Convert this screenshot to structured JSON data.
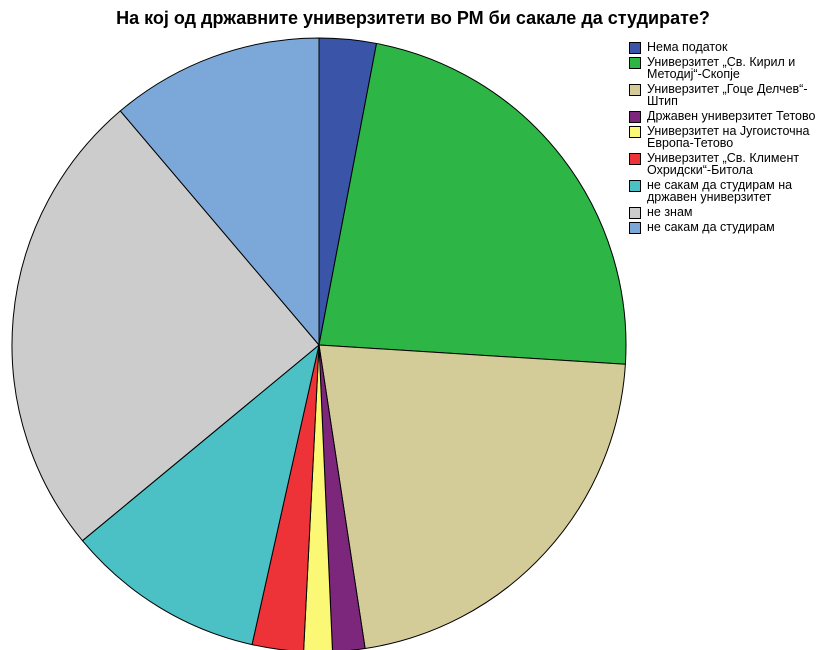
{
  "chart_data": {
    "type": "pie",
    "title": "На кој од државните универзитети во РМ би сакале да студирате?",
    "start_angle_deg": 0,
    "direction": "clockwise",
    "legend_position": "right",
    "slices": [
      {
        "label": "Нема податок",
        "value": 3.0,
        "color": "#3a54a7"
      },
      {
        "label": "Универзитет „Св. Кирил и Методиј“-Скопје",
        "value": 23.0,
        "color": "#2db646"
      },
      {
        "label": "Универзитет „Гоце Делчев“-Штип",
        "value": 21.6,
        "color": "#d3cb98"
      },
      {
        "label": "Државен универзитет Тетово",
        "value": 1.7,
        "color": "#7c277c"
      },
      {
        "label": "Универзитет на Југоисточна Европа-Тетово",
        "value": 1.5,
        "color": "#fbf875"
      },
      {
        "label": "Универзитет „Св. Климент Охридски“-Битола",
        "value": 2.7,
        "color": "#ee3338"
      },
      {
        "label": "не сакам да студирам на државен универзитет",
        "value": 10.5,
        "color": "#4bc1c6"
      },
      {
        "label": "не знам",
        "value": 24.8,
        "color": "#cccccc"
      },
      {
        "label": "не сакам да студирам",
        "value": 11.2,
        "color": "#7ba8d8"
      }
    ]
  }
}
